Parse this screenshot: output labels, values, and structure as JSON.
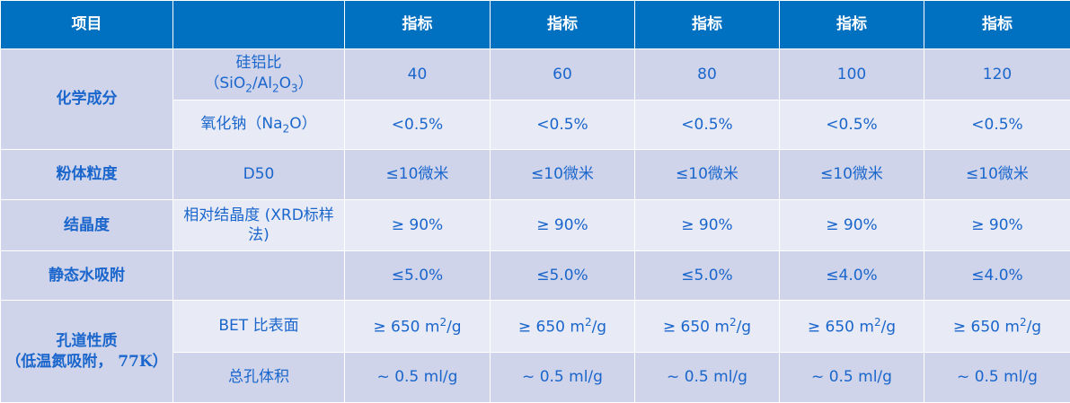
{
  "header": {
    "item": "项目",
    "param": "",
    "cols": [
      "指标",
      "指标",
      "指标",
      "指标",
      "指标"
    ]
  },
  "rows": {
    "chem": {
      "group": "化学成分",
      "sar_label_top": "硅铝比",
      "sar_label_open": "（SiO",
      "sar_label_2a": "2",
      "sar_label_mid": "/Al",
      "sar_label_2b": "2",
      "sar_label_o": "O",
      "sar_label_3": "3",
      "sar_label_close": "）",
      "sar_values": [
        "40",
        "60",
        "80",
        "100",
        "120"
      ],
      "na_label_open": "氧化钠（Na",
      "na_label_2": "2",
      "na_label_close": "O）",
      "na_values": [
        "<0.5%",
        "<0.5%",
        "<0.5%",
        "<0.5%",
        "<0.5%"
      ]
    },
    "powder": {
      "group": "粉体粒度",
      "param": "D50",
      "values": [
        "≤10微米",
        "≤10微米",
        "≤10微米",
        "≤10微米",
        "≤10微米"
      ]
    },
    "cryst": {
      "group": "结晶度",
      "param": "相对结晶度 (XRD标样法)",
      "values": [
        "≥ 90%",
        "≥ 90%",
        "≥ 90%",
        "≥ 90%",
        "≥ 90%"
      ]
    },
    "water": {
      "group": "静态水吸附",
      "param": "",
      "values": [
        "≤5.0%",
        "≤5.0%",
        "≤5.0%",
        "≤4.0%",
        "≤4.0%"
      ]
    },
    "pore": {
      "group_line1": "孔道性质",
      "group_line2": "（低温氮吸附， 77K）",
      "bet_label": "BET 比表面",
      "bet_value_main": "≥ 650 m",
      "bet_value_sup": "2",
      "bet_value_tail": "/g",
      "vol_label": "总孔体积",
      "vol_values": [
        "~ 0.5 ml/g",
        "~ 0.5 ml/g",
        "~ 0.5 ml/g",
        "~ 0.5 ml/g",
        "~ 0.5 ml/g"
      ]
    }
  }
}
